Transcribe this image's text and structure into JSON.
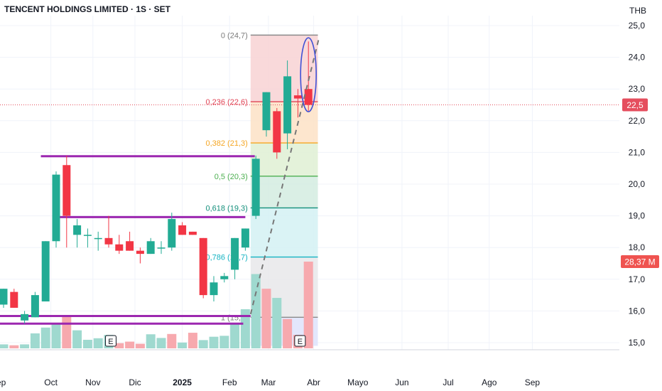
{
  "header": {
    "title": "TENCENT HOLDINGS LIMITED · 1S · SET",
    "currency": "THB"
  },
  "colors": {
    "up": "#22ab94",
    "down": "#f23645",
    "vol_up": "#9fd9cf",
    "vol_down": "#f7a9ae",
    "resistance": "#9c27b0",
    "price_line": "#e54e5e",
    "volume_badge": "#ef5350",
    "ellipse": "#3f51d6",
    "trend": "#777777"
  },
  "chart_data": {
    "type": "candlestick",
    "title": "TENCENT HOLDINGS LIMITED · 1S · SET",
    "currency": "THB",
    "ylim": [
      14.8,
      25.2
    ],
    "yticks": [
      "15,0",
      "16,0",
      "17,0",
      "18,0",
      "19,0",
      "20,0",
      "21,0",
      "22,0",
      "23,0",
      "24,0",
      "25,0"
    ],
    "xticks": [
      {
        "label": "Sep",
        "i": -0.5
      },
      {
        "label": "Oct",
        "i": 4.5
      },
      {
        "label": "Nov",
        "i": 8.5
      },
      {
        "label": "Dic",
        "i": 12.5
      },
      {
        "label": "2025",
        "i": 17,
        "bold": true
      },
      {
        "label": "Feb",
        "i": 21.5
      },
      {
        "label": "Mar",
        "i": 25.2
      },
      {
        "label": "Abr",
        "i": 29.5
      },
      {
        "label": "Mayo",
        "i": 33.7
      },
      {
        "label": "Jun",
        "i": 37.9
      },
      {
        "label": "Jul",
        "i": 42.3
      },
      {
        "label": "Ago",
        "i": 46.2
      },
      {
        "label": "Sep",
        "i": 50.3
      }
    ],
    "candles": [
      {
        "o": 16.2,
        "h": 16.7,
        "l": 16.1,
        "c": 16.7
      },
      {
        "o": 16.6,
        "h": 16.7,
        "l": 16.1,
        "c": 16.1
      },
      {
        "o": 15.7,
        "h": 16.0,
        "l": 15.6,
        "c": 15.9
      },
      {
        "o": 15.8,
        "h": 16.6,
        "l": 15.8,
        "c": 16.5
      },
      {
        "o": 16.3,
        "h": 18.2,
        "l": 16.3,
        "c": 18.2
      },
      {
        "o": 18.2,
        "h": 20.4,
        "l": 18.0,
        "c": 20.3
      },
      {
        "o": 20.6,
        "h": 20.9,
        "l": 18.0,
        "c": 19.0
      },
      {
        "o": 18.4,
        "h": 18.9,
        "l": 18.0,
        "c": 18.7
      },
      {
        "o": 18.4,
        "h": 18.6,
        "l": 18.0,
        "c": 18.4
      },
      {
        "o": 18.3,
        "h": 18.5,
        "l": 17.9,
        "c": 18.3
      },
      {
        "o": 18.3,
        "h": 19.0,
        "l": 18.0,
        "c": 18.1
      },
      {
        "o": 18.1,
        "h": 18.4,
        "l": 17.8,
        "c": 17.9
      },
      {
        "o": 18.2,
        "h": 18.5,
        "l": 17.9,
        "c": 17.9
      },
      {
        "o": 17.9,
        "h": 18.0,
        "l": 17.5,
        "c": 17.8
      },
      {
        "o": 17.8,
        "h": 18.3,
        "l": 17.8,
        "c": 18.2
      },
      {
        "o": 18.0,
        "h": 18.2,
        "l": 17.8,
        "c": 18.0
      },
      {
        "o": 18.0,
        "h": 19.1,
        "l": 17.9,
        "c": 18.9
      },
      {
        "o": 18.7,
        "h": 18.8,
        "l": 18.4,
        "c": 18.4
      },
      {
        "o": 18.5,
        "h": 18.5,
        "l": 18.4,
        "c": 18.4
      },
      {
        "o": 18.3,
        "h": 18.3,
        "l": 16.4,
        "c": 16.5
      },
      {
        "o": 16.5,
        "h": 17.1,
        "l": 16.3,
        "c": 16.9
      },
      {
        "o": 17.0,
        "h": 17.2,
        "l": 16.9,
        "c": 17.1
      },
      {
        "o": 17.3,
        "h": 18.3,
        "l": 17.0,
        "c": 18.3
      },
      {
        "o": 18.0,
        "h": 18.6,
        "l": 17.9,
        "c": 18.6
      },
      {
        "o": 19.0,
        "h": 20.9,
        "l": 18.9,
        "c": 20.8
      },
      {
        "o": 21.7,
        "h": 22.9,
        "l": 21.5,
        "c": 22.9
      },
      {
        "o": 22.3,
        "h": 22.4,
        "l": 20.8,
        "c": 21.0
      },
      {
        "o": 21.6,
        "h": 23.9,
        "l": 21.1,
        "c": 23.4
      },
      {
        "o": 22.8,
        "h": 23.0,
        "l": 22.1,
        "c": 22.7
      },
      {
        "o": 23.0,
        "h": 24.5,
        "l": 22.3,
        "c": 22.5
      }
    ],
    "volume_max": 28.37,
    "volumes": [
      {
        "v": 1.3,
        "up": true
      },
      {
        "v": 1.0,
        "up": false
      },
      {
        "v": 1.3,
        "up": true
      },
      {
        "v": 4.9,
        "up": true
      },
      {
        "v": 6.8,
        "up": true
      },
      {
        "v": 8.2,
        "up": true
      },
      {
        "v": 10.4,
        "up": false
      },
      {
        "v": 5.9,
        "up": true
      },
      {
        "v": 2.8,
        "up": true
      },
      {
        "v": 3.3,
        "up": true
      },
      {
        "v": 4.4,
        "up": true
      },
      {
        "v": 1.7,
        "up": false
      },
      {
        "v": 2.2,
        "up": false
      },
      {
        "v": 1.5,
        "up": false
      },
      {
        "v": 4.6,
        "up": true
      },
      {
        "v": 3.4,
        "up": true
      },
      {
        "v": 4.7,
        "up": false
      },
      {
        "v": 1.9,
        "up": true
      },
      {
        "v": 5.1,
        "up": false
      },
      {
        "v": 2.7,
        "up": true
      },
      {
        "v": 3.8,
        "up": true
      },
      {
        "v": 4.1,
        "up": true
      },
      {
        "v": 8.3,
        "up": true
      },
      {
        "v": 12.8,
        "up": true
      },
      {
        "v": 24.3,
        "up": true
      },
      {
        "v": 19.5,
        "up": false
      },
      {
        "v": 16.5,
        "up": true
      },
      {
        "v": 9.6,
        "up": false
      },
      {
        "v": 4.4,
        "up": false
      },
      {
        "v": 28.37,
        "up": false
      }
    ],
    "fib": [
      {
        "ratio": "0",
        "label": "0 (24,7)",
        "price": 24.7,
        "line": "#8a8a8a",
        "zone": "#f8d2d4",
        "text": "#7b7b7b"
      },
      {
        "ratio": "0.236",
        "label": "0,236 (22,6)",
        "price": 22.6,
        "line": "#e04455",
        "zone": "#fde2c6",
        "text": "#e04455"
      },
      {
        "ratio": "0.382",
        "label": "0,382 (21,3)",
        "price": 21.3,
        "line": "#f5a623",
        "zone": "#dff0d4",
        "text": "#f5a623"
      },
      {
        "ratio": "0.5",
        "label": "0,5 (20,3)",
        "price": 20.25,
        "line": "#4caf50",
        "zone": "#d4ece1",
        "text": "#4caf50"
      },
      {
        "ratio": "0.618",
        "label": "0,618 (19,3)",
        "price": 19.25,
        "line": "#138f7b",
        "zone": "#d3f1f3",
        "text": "#138f7b"
      },
      {
        "ratio": "0.786",
        "label": "0,786 (17,7)",
        "price": 17.7,
        "line": "#13b3c2",
        "zone": "#e8e8ea",
        "text": "#13b3c2"
      },
      {
        "ratio": "1",
        "label": "1 (15,8)",
        "price": 15.8,
        "line": "#8a8a8a",
        "zone": "#dee3fb",
        "text": "#7b7b7b"
      }
    ],
    "fib_bottom_price": 14.9,
    "resistance_lines": [
      {
        "price": 20.88,
        "from_i": 3.55,
        "to_i": 23.9
      },
      {
        "price": 18.96,
        "from_i": 4.7,
        "to_i": 23.0
      },
      {
        "price": 15.84,
        "from_i": -1.0,
        "to_i": 23.5
      },
      {
        "price": 15.6,
        "from_i": -1.0,
        "to_i": 22.8
      }
    ],
    "trendline": {
      "from_i": 23.5,
      "from_price": 15.9,
      "to_i": 30.0,
      "to_price": 24.6
    },
    "earnings_markers": [
      {
        "label": "E",
        "i": 10.2
      },
      {
        "label": "E",
        "i": 28.2
      }
    ],
    "last_price": 22.5,
    "last_price_label": "22,5",
    "volume_label": "28,37 M"
  }
}
